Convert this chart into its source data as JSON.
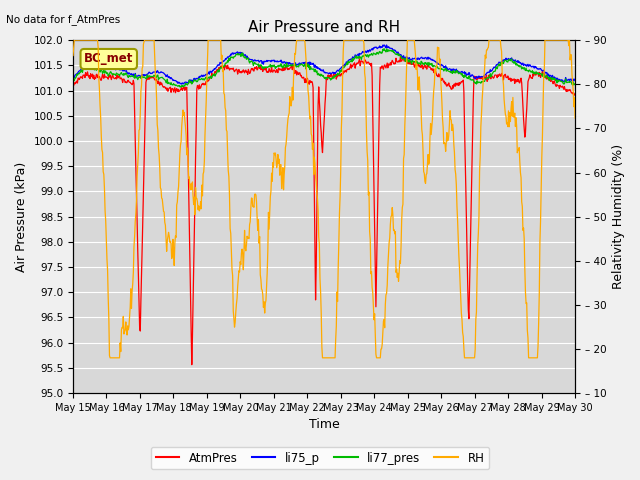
{
  "title": "Air Pressure and RH",
  "top_left_text": "No data for f_AtmPres",
  "box_label": "BC_met",
  "xlabel": "Time",
  "ylabel_left": "Air Pressure (kPa)",
  "ylabel_right": "Relativity Humidity (%)",
  "ylim_left": [
    95.0,
    102.0
  ],
  "ylim_right": [
    10,
    90
  ],
  "yticks_left": [
    95.0,
    95.5,
    96.0,
    96.5,
    97.0,
    97.5,
    98.0,
    98.5,
    99.0,
    99.5,
    100.0,
    100.5,
    101.0,
    101.5,
    102.0
  ],
  "yticks_right_vals": [
    10,
    20,
    30,
    40,
    50,
    60,
    70,
    80,
    90
  ],
  "yticks_right_labels": [
    "– 10",
    "– 20",
    "– 30",
    "– 40",
    "– 50",
    "– 60",
    "– 70",
    "– 80",
    "– 90"
  ],
  "xtick_labels": [
    "May 15",
    "May 16",
    "May 17",
    "May 18",
    "May 19",
    "May 20",
    "May 21",
    "May 22",
    "May 23",
    "May 24",
    "May 25",
    "May 26",
    "May 27",
    "May 28",
    "May 29",
    "May 30"
  ],
  "colors": {
    "AtmPres": "#ff0000",
    "li75_p": "#0000ff",
    "li77_pres": "#00bb00",
    "RH": "#ffaa00",
    "plot_bg": "#d8d8d8",
    "grid": "#ffffff",
    "fig_bg": "#f0f0f0"
  },
  "legend_labels": [
    "AtmPres",
    "li75_p",
    "li77_pres",
    "RH"
  ]
}
